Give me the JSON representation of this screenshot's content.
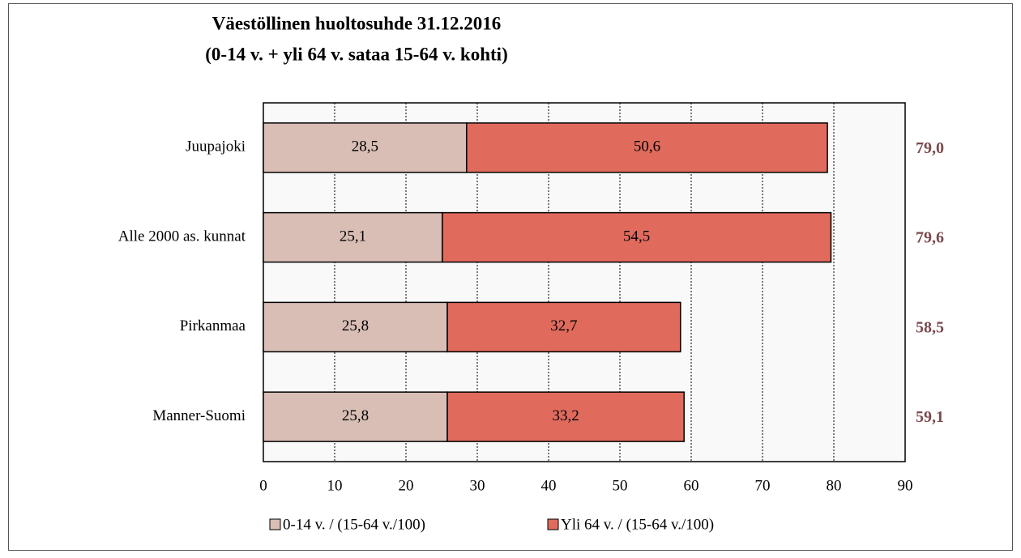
{
  "chart_data": {
    "type": "bar",
    "orientation": "horizontal",
    "stacked": true,
    "title": "Väestöllinen huoltosuhde 31.12.2016",
    "subtitle": "(0-14 v. + yli 64 v. sataa 15-64 v. kohti)",
    "categories": [
      "Juupajoki",
      "Alle 2000 as. kunnat",
      "Pirkanmaa",
      "Manner-Suomi"
    ],
    "series": [
      {
        "name": "0-14 v. / (15-64 v./100)",
        "color": "#d9beb5",
        "values": [
          28.5,
          25.1,
          25.8,
          25.8
        ],
        "value_labels": [
          "28,5",
          "25,1",
          "25,8",
          "25,8"
        ]
      },
      {
        "name": "Yli 64 v. / (15-64 v./100)",
        "color": "#e06b5d",
        "values": [
          50.6,
          54.5,
          32.7,
          33.2
        ],
        "value_labels": [
          "50,6",
          "54,5",
          "32,7",
          "33,2"
        ]
      }
    ],
    "totals": [
      79.0,
      79.6,
      58.5,
      59.1
    ],
    "total_labels": [
      "79,0",
      "79,6",
      "58,5",
      "59,1"
    ],
    "total_color": "#7a4a4d",
    "xlim": [
      0,
      90
    ],
    "xticks": [
      0,
      10,
      20,
      30,
      40,
      50,
      60,
      70,
      80,
      90
    ],
    "grid": true,
    "legend": "bottom"
  }
}
